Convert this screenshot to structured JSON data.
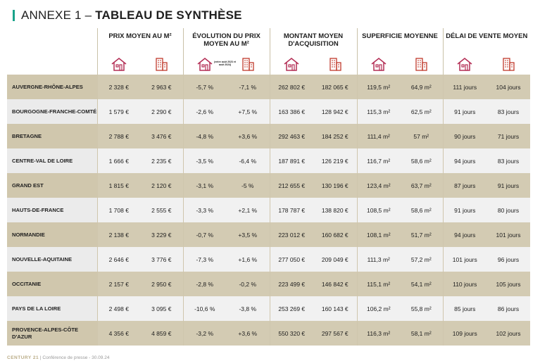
{
  "title": {
    "prefix": "ANNEXE 1 – ",
    "main": "TABLEAU DE SYNTHÈSE"
  },
  "headers": [
    {
      "label": "PRIX MOYEN AU M²",
      "note": ""
    },
    {
      "label": "ÉVOLUTION DU PRIX MOYEN AU M²",
      "note": "(entre août 2023 et août 2024)"
    },
    {
      "label": "MONTANT MOYEN D'ACQUISITION",
      "note": ""
    },
    {
      "label": "SUPERFICIE MOYENNE",
      "note": ""
    },
    {
      "label": "DÉLAI DE VENTE MOYEN",
      "note": ""
    }
  ],
  "icons": {
    "house": "house-icon",
    "apartment": "apartment-building-icon"
  },
  "colors": {
    "accent": "#1aa38a",
    "icon": "#b32e55",
    "row_odd": "#d3cbb3",
    "row_even": "#f1f1f1"
  },
  "rows": [
    {
      "region": "AUVERGNE-RHÔNE-ALPES",
      "values": [
        "2 328 €",
        "2 963 €",
        "-5,7 %",
        "-7,1 %",
        "262 802 €",
        "182 065 €",
        "119,5 m²",
        "64,9 m²",
        "111 jours",
        "104 jours"
      ]
    },
    {
      "region": "BOURGOGNE-FRANCHE-COMTÉ",
      "values": [
        "1 579 €",
        "2 290 €",
        "-2,6 %",
        "+7,5 %",
        "163 386 €",
        "128 942 €",
        "115,3 m²",
        "62,5 m²",
        "91 jours",
        "83 jours"
      ]
    },
    {
      "region": "BRETAGNE",
      "values": [
        "2 788 €",
        "3 476 €",
        "-4,8 %",
        "+3,6 %",
        "292 463 €",
        "184 252 €",
        "111,4 m²",
        "57 m²",
        "90 jours",
        "71 jours"
      ]
    },
    {
      "region": "CENTRE-VAL DE LOIRE",
      "values": [
        "1 666 €",
        "2 235 €",
        "-3,5 %",
        "-6,4 %",
        "187 891 €",
        "126 219 €",
        "116,7 m²",
        "58,6 m²",
        "94 jours",
        "83 jours"
      ]
    },
    {
      "region": "GRAND EST",
      "values": [
        "1 815 €",
        "2 120 €",
        "-3,1 %",
        "-5 %",
        "212 655 €",
        "130 196 €",
        "123,4 m²",
        "63,7 m²",
        "87 jours",
        "91 jours"
      ]
    },
    {
      "region": "HAUTS-DE-FRANCE",
      "values": [
        "1 708 €",
        "2 555 €",
        "-3,3 %",
        "+2,1 %",
        "178 787 €",
        "138 820 €",
        "108,5 m²",
        "58,6 m²",
        "91 jours",
        "80 jours"
      ]
    },
    {
      "region": "NORMANDIE",
      "values": [
        "2 138 €",
        "3 229 €",
        "-0,7 %",
        "+3,5 %",
        "223 012 €",
        "160 682 €",
        "108,1 m²",
        "51,7 m²",
        "94 jours",
        "101 jours"
      ]
    },
    {
      "region": "NOUVELLE-AQUITAINE",
      "values": [
        "2 646 €",
        "3 776 €",
        "-7,3 %",
        "+1,6 %",
        "277 050 €",
        "209 049 €",
        "111,3 m²",
        "57,2 m²",
        "101 jours",
        "96 jours"
      ]
    },
    {
      "region": "OCCITANIE",
      "values": [
        "2 157 €",
        "2 950 €",
        "-2,8 %",
        "-0,2 %",
        "223 499 €",
        "146 842 €",
        "115,1 m²",
        "54,1 m²",
        "110 jours",
        "105 jours"
      ]
    },
    {
      "region": "PAYS DE LA LOIRE",
      "values": [
        "2 498 €",
        "3 095 €",
        "-10,6 %",
        "-3,8 %",
        "253 269 €",
        "160 143 €",
        "106,2 m²",
        "55,8 m²",
        "85 jours",
        "86 jours"
      ]
    },
    {
      "region": "PROVENCE-ALPES-CÔTE D'AZUR",
      "values": [
        "4 356 €",
        "4 859 €",
        "-3,2 %",
        "+3,6 %",
        "550 320 €",
        "297 567 €",
        "116,3 m²",
        "58,1 m²",
        "109 jours",
        "102 jours"
      ]
    }
  ],
  "footer": {
    "brand": "CENTURY 21",
    "text": " | Conférence de presse - 30.09.24"
  }
}
